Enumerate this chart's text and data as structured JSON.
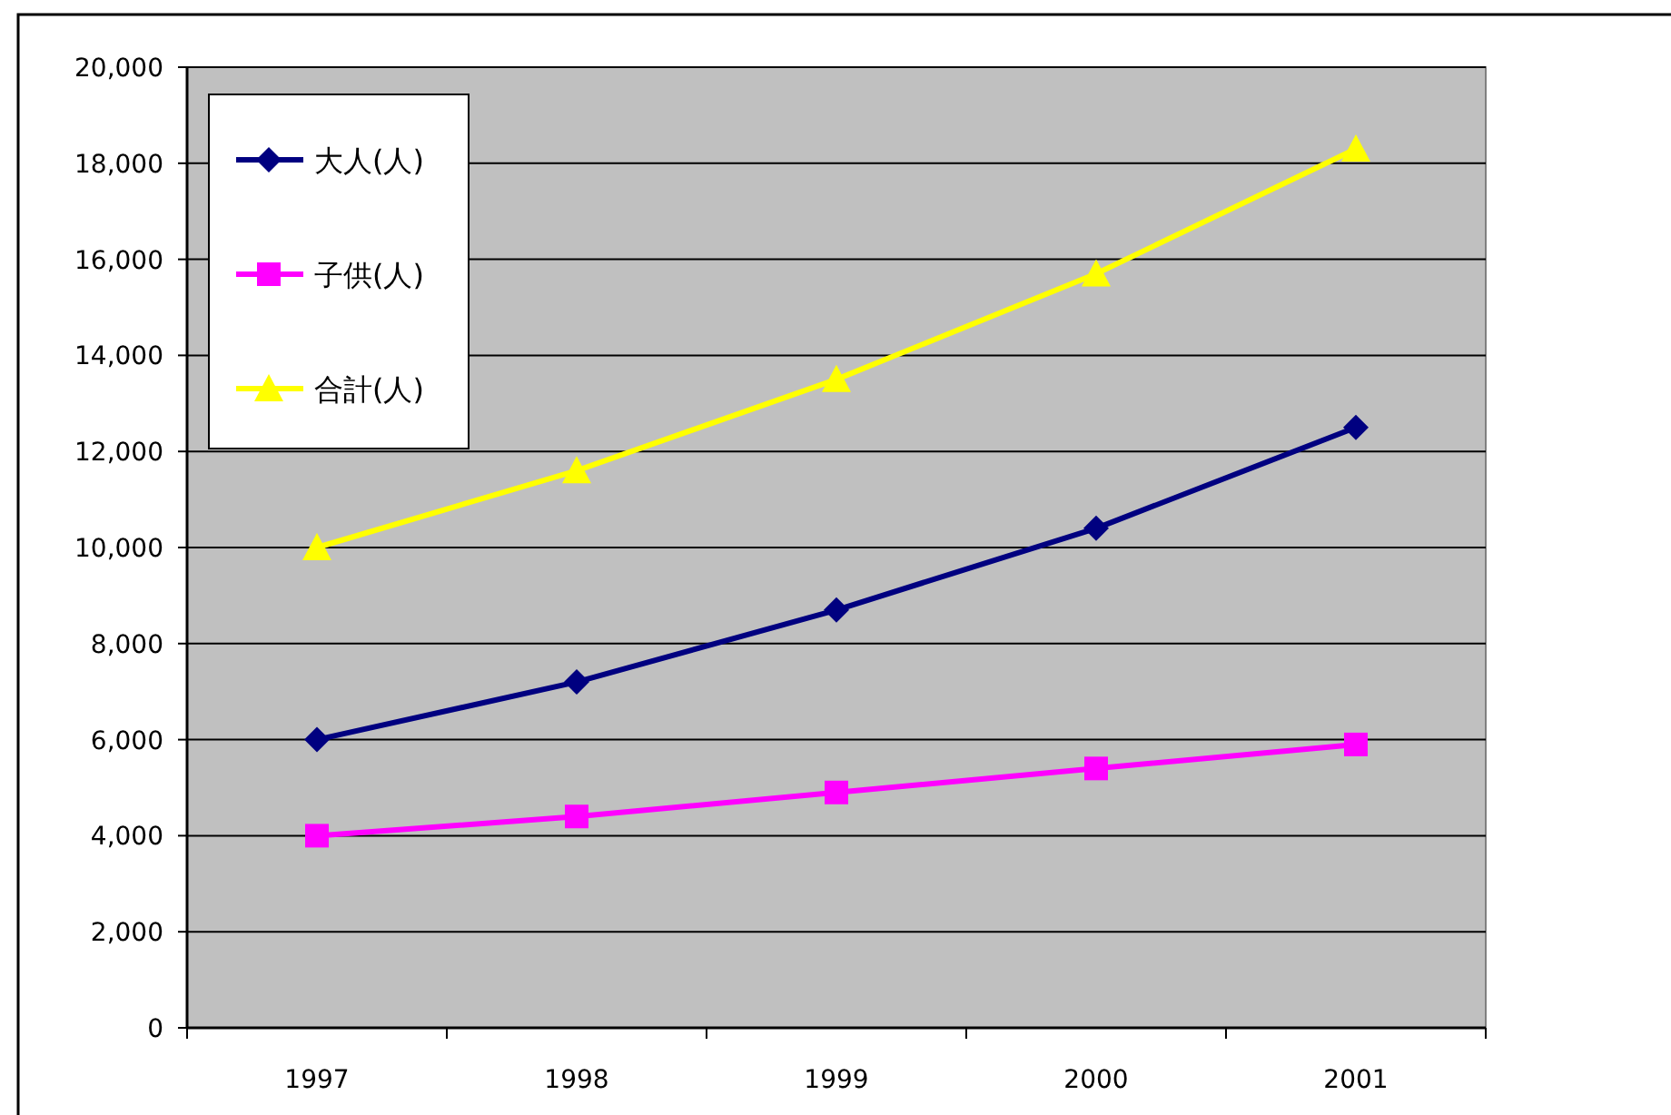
{
  "chart_data": {
    "type": "line",
    "categories": [
      "1997",
      "1998",
      "1999",
      "2000",
      "2001"
    ],
    "series": [
      {
        "name": "大人(人)",
        "color": "#000080",
        "marker": "diamond",
        "values": [
          6000,
          7200,
          8700,
          10400,
          12500
        ]
      },
      {
        "name": "子供(人)",
        "color": "#ff00ff",
        "marker": "square",
        "values": [
          4000,
          4400,
          4900,
          5400,
          5900
        ]
      },
      {
        "name": "合計(人)",
        "color": "#ffff00",
        "marker": "triangle",
        "values": [
          10000,
          11600,
          13500,
          15700,
          18300
        ]
      }
    ],
    "ylim": [
      0,
      20000
    ],
    "yticks": [
      0,
      {
        "value": 2000,
        "label": "2,000"
      },
      {
        "value": 4000,
        "label": "4,000"
      },
      {
        "value": 6000,
        "label": "6,000"
      },
      {
        "value": 8000,
        "label": "8,000"
      },
      {
        "value": 10000,
        "label": "10,000"
      },
      {
        "value": 12000,
        "label": "12,000"
      },
      {
        "value": 14000,
        "label": "14,000"
      },
      {
        "value": 16000,
        "label": "16,000"
      },
      {
        "value": 18000,
        "label": "18,000"
      },
      {
        "value": 20000,
        "label": "20,000"
      }
    ],
    "grid": "y",
    "legend": "top left"
  }
}
